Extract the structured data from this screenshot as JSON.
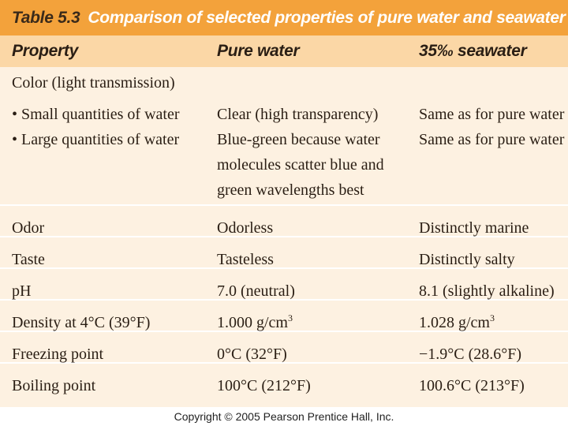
{
  "table": {
    "number": "Table 5.3",
    "title": "Comparison of selected properties of pure water and seawater",
    "headers": [
      "Property",
      "Pure water",
      "35‰ seawater"
    ],
    "color_section": {
      "label": "Color (light transmission)",
      "small_label": "• Small quantities of water",
      "small_pure": "Clear (high transparency)",
      "small_sea": "Same as for pure water",
      "large_label": "• Large quantities of water",
      "large_pure_lines": [
        "Blue-green because water",
        "molecules scatter blue and",
        "green wavelengths best"
      ],
      "large_sea": "Same as for pure water"
    },
    "rows": [
      {
        "property": "Odor",
        "pure": "Odorless",
        "sea": "Distinctly marine"
      },
      {
        "property": "Taste",
        "pure": "Tasteless",
        "sea": "Distinctly salty"
      },
      {
        "property": "pH",
        "pure": "7.0 (neutral)",
        "sea": "8.1 (slightly alkaline)"
      },
      {
        "property": "Density at 4°C (39°F)",
        "pure": "1.000 g/cm",
        "pure_sup": "3",
        "sea": "1.028 g/cm",
        "sea_sup": "3"
      },
      {
        "property": "Freezing point",
        "pure": "0°C (32°F)",
        "sea": "−1.9°C (28.6°F)"
      },
      {
        "property": "Boiling point",
        "pure": "100°C (212°F)",
        "sea": "100.6°C (213°F)"
      }
    ]
  },
  "footer": {
    "copyright": "Copyright © 2005 Pearson Prentice Hall, Inc."
  },
  "colors": {
    "title_bar": "#f3a23b",
    "header_row": "#fbd7a6",
    "body": "#fdf1e1"
  }
}
